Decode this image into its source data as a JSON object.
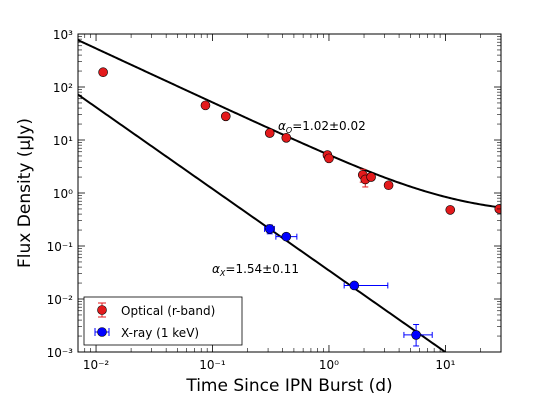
{
  "chart_data": {
    "type": "scatter",
    "xlabel": "Time Since IPN Burst (d)",
    "ylabel": "Flux Density (μJy)",
    "xscale": "log",
    "yscale": "log",
    "xlim": [
      0.007,
      30
    ],
    "ylim": [
      0.001,
      1000
    ],
    "x_ticks": [
      {
        "value": 0.01,
        "label": "10⁻²"
      },
      {
        "value": 0.1,
        "label": "10⁻¹"
      },
      {
        "value": 1,
        "label": "10⁰"
      },
      {
        "value": 10,
        "label": "10¹"
      }
    ],
    "y_ticks": [
      {
        "value": 0.001,
        "label": "10⁻³"
      },
      {
        "value": 0.01,
        "label": "10⁻²"
      },
      {
        "value": 0.1,
        "label": "10⁻¹"
      },
      {
        "value": 1,
        "label": "10⁰"
      },
      {
        "value": 10,
        "label": "10¹"
      },
      {
        "value": 100,
        "label": "10²"
      },
      {
        "value": 1000,
        "label": "10³"
      }
    ],
    "grid": false,
    "legend_position": "bottom-left",
    "series": [
      {
        "name": "Optical (r-band)",
        "color": "#e31a1c",
        "marker": "circle",
        "points": [
          {
            "x": 0.0115,
            "y": 190
          },
          {
            "x": 0.087,
            "y": 45
          },
          {
            "x": 0.13,
            "y": 28
          },
          {
            "x": 0.31,
            "y": 13.5
          },
          {
            "x": 0.43,
            "y": 11
          },
          {
            "x": 0.97,
            "y": 5.2
          },
          {
            "x": 1.0,
            "y": 4.5
          },
          {
            "x": 1.95,
            "y": 2.2,
            "yerr": [
              0.6,
              0.6
            ]
          },
          {
            "x": 2.05,
            "y": 1.8,
            "yerr": [
              0.5,
              0.5
            ]
          },
          {
            "x": 2.3,
            "y": 2.0
          },
          {
            "x": 3.25,
            "y": 1.4
          },
          {
            "x": 11.0,
            "y": 0.48
          },
          {
            "x": 29.0,
            "y": 0.5
          }
        ]
      },
      {
        "name": "X-ray (1 keV)",
        "color": "#0000ff",
        "marker": "circle",
        "points": [
          {
            "x": 0.31,
            "y": 0.21,
            "xerr": [
              0.03,
              0.03
            ],
            "yerr": [
              0.04,
              0.04
            ]
          },
          {
            "x": 0.43,
            "y": 0.15,
            "xerr": [
              0.08,
              0.1
            ]
          },
          {
            "x": 1.65,
            "y": 0.018,
            "xerr": [
              0.3,
              1.55
            ]
          },
          {
            "x": 5.6,
            "y": 0.0021,
            "xerr": [
              1.2,
              2.1
            ],
            "yerr": [
              0.0008,
              0.0012
            ]
          }
        ]
      }
    ],
    "fit_lines": [
      {
        "series": "Optical (r-band)",
        "model": "power_law_plus_constant",
        "amplitude": 4.86,
        "alpha": 1.02,
        "constant": 0.38
      },
      {
        "series": "X-ray (1 keV)",
        "model": "power_law",
        "amplitude": 0.0345,
        "alpha": 1.54
      }
    ],
    "annotations": [
      {
        "series": "Optical (r-band)",
        "symbol": "α",
        "subscript": "O",
        "text": "=1.02±0.02"
      },
      {
        "series": "X-ray (1 keV)",
        "symbol": "α",
        "subscript": "X",
        "text": "=1.54±0.11"
      }
    ]
  }
}
